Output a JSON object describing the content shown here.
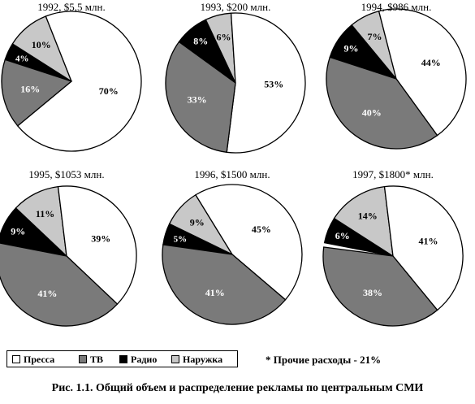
{
  "chart_data": {
    "type": "pie",
    "categories": [
      "Пресса",
      "ТВ",
      "Радио",
      "Наружка"
    ],
    "colors": {
      "Пресса": "#ffffff",
      "ТВ": "#7a7a7a",
      "Радио": "#000000",
      "Наружка": "#c8c8c8"
    },
    "charts": [
      {
        "title": "1992, $5,5 млн.",
        "values": [
          70,
          16,
          4,
          10
        ]
      },
      {
        "title": "1993, $200 млн.",
        "values": [
          53,
          33,
          8,
          6
        ]
      },
      {
        "title": "1994, $986 млн.",
        "values": [
          44,
          40,
          9,
          7
        ]
      },
      {
        "title": "1995, $1053 млн.",
        "values": [
          39,
          41,
          9,
          11
        ]
      },
      {
        "title": "1996, $1500 млн.",
        "values": [
          45,
          41,
          5,
          9
        ]
      },
      {
        "title": "1997, $1800* млн.",
        "values": [
          41,
          38,
          6,
          14
        ]
      }
    ],
    "value_suffix": "%"
  },
  "legend": {
    "items": [
      {
        "label": "Пресса",
        "color": "#ffffff"
      },
      {
        "label": "ТВ",
        "color": "#7a7a7a"
      },
      {
        "label": "Радио",
        "color": "#000000"
      },
      {
        "label": "Наружка",
        "color": "#c8c8c8"
      }
    ]
  },
  "footnote": "* Прочие расходы - 21%",
  "caption": "Рис. 1.1. Общий объем и распределение рекламы по центральным СМИ"
}
